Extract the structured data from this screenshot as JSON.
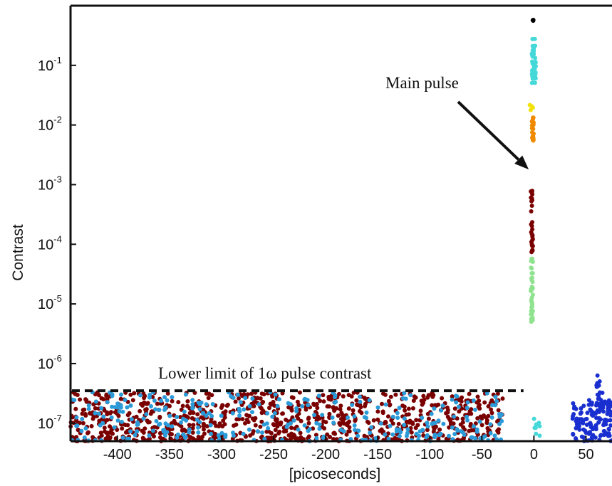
{
  "chart_data": {
    "type": "scatter",
    "ylabel": "Contrast",
    "xlabel": "[picoseconds]",
    "yscale": "log",
    "xlim": [
      -445,
      75
    ],
    "ylim": [
      5e-08,
      1.0
    ],
    "xticks": [
      -400,
      -350,
      -300,
      -250,
      -200,
      -150,
      -100,
      -50,
      0,
      50
    ],
    "xtick_labels": [
      "-400",
      "-350",
      "-300",
      "-250",
      "-200",
      "-150",
      "-100",
      "-50",
      "0",
      "50"
    ],
    "yticks": [
      1e-07,
      1e-06,
      1e-05,
      0.0001,
      0.001,
      0.01,
      0.1
    ],
    "ytick_labels": [
      {
        "base": "10",
        "exp": "-7"
      },
      {
        "base": "10",
        "exp": "-6"
      },
      {
        "base": "10",
        "exp": "-5"
      },
      {
        "base": "10",
        "exp": "-4"
      },
      {
        "base": "10",
        "exp": "-3"
      },
      {
        "base": "10",
        "exp": "-2"
      },
      {
        "base": "10",
        "exp": "-1"
      }
    ],
    "grid": false,
    "annotations": [
      {
        "id": "main-pulse",
        "text": "Main pulse",
        "arrow_to_x": -5,
        "arrow_to_y": 0.0018
      },
      {
        "id": "lower-limit",
        "text": "Lower limit of 1ω pulse contrast",
        "y": 3.5e-07,
        "x_from": -445,
        "x_to": -10
      }
    ],
    "series": [
      {
        "color": "#7a0000",
        "clusters": [
          {
            "x_min": -445,
            "x_max": -30,
            "y_min": 5e-08,
            "y_max": 3.3e-07,
            "count": 900
          },
          {
            "x_min": -3,
            "x_max": -1,
            "y_min": 7e-05,
            "y_max": 0.0008,
            "count": 30
          }
        ]
      },
      {
        "color": "#2a9ad8",
        "clusters": [
          {
            "x_min": -445,
            "x_max": -30,
            "y_min": 5e-08,
            "y_max": 3.3e-07,
            "count": 320
          }
        ]
      },
      {
        "color": "#8fe38f",
        "clusters": [
          {
            "x_min": -3,
            "x_max": -1,
            "y_min": 5e-06,
            "y_max": 6e-05,
            "count": 40
          }
        ]
      },
      {
        "color": "#f08a00",
        "clusters": [
          {
            "x_min": -2,
            "x_max": 0,
            "y_min": 0.005,
            "y_max": 0.015,
            "count": 22
          }
        ]
      },
      {
        "color": "#f2e10a",
        "clusters": [
          {
            "x_min": -5,
            "x_max": -1,
            "y_min": 0.01,
            "y_max": 0.025,
            "count": 4
          }
        ]
      },
      {
        "color": "#44d8d8",
        "clusters": [
          {
            "x_min": -2,
            "x_max": 2,
            "y_min": 0.05,
            "y_max": 0.28,
            "count": 45
          },
          {
            "x_min": 0,
            "x_max": 6,
            "y_min": 6e-08,
            "y_max": 1.4e-07,
            "count": 8
          }
        ]
      },
      {
        "color": "#1a2fd0",
        "clusters": [
          {
            "x_min": 37,
            "x_max": 75,
            "y_min": 5e-08,
            "y_max": 2.5e-07,
            "count": 130
          },
          {
            "x_min": 60,
            "x_max": 66,
            "y_min": 1.5e-07,
            "y_max": 8e-07,
            "count": 25
          }
        ]
      },
      {
        "color": "#000000",
        "clusters": [
          {
            "x_min": -2,
            "x_max": 0,
            "y_min": 0.55,
            "y_max": 0.7,
            "count": 3
          }
        ]
      }
    ]
  }
}
